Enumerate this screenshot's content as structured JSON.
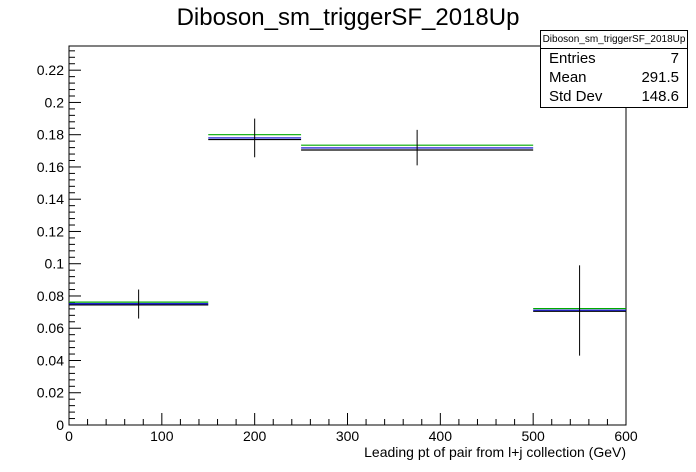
{
  "chart_data": {
    "type": "histogram",
    "title": "Diboson_sm_triggerSF_2018Up",
    "xlabel": "Leading pt of pair from l+j collection (GeV)",
    "ylabel": "",
    "xlim": [
      0,
      600
    ],
    "ylim": [
      0,
      0.235
    ],
    "x_ticks": [
      0,
      100,
      200,
      300,
      400,
      500,
      600
    ],
    "y_ticks": [
      0,
      0.02,
      0.04,
      0.06,
      0.08,
      0.1,
      0.12,
      0.14,
      0.16,
      0.18,
      0.2,
      0.22
    ],
    "bins": [
      {
        "xlow": 0,
        "xhigh": 150,
        "center": 75,
        "value": 0.075,
        "err": 0.009
      },
      {
        "xlow": 150,
        "xhigh": 250,
        "center": 200,
        "value": 0.178,
        "err": 0.012
      },
      {
        "xlow": 250,
        "xhigh": 500,
        "center": 375,
        "value": 0.172,
        "err": 0.011
      },
      {
        "xlow": 500,
        "xhigh": 600,
        "center": 550,
        "value": 0.071,
        "err": 0.028
      }
    ],
    "series": [
      {
        "color": "#000000",
        "values": [
          0.0745,
          0.177,
          0.1705,
          0.0705
        ]
      },
      {
        "color": "#0000cc",
        "values": [
          0.0752,
          0.178,
          0.1718,
          0.0712
        ]
      },
      {
        "color": "#00aa00",
        "values": [
          0.0762,
          0.18,
          0.1735,
          0.0722
        ]
      }
    ],
    "stats_box": {
      "name": "Diboson_sm_triggerSF_2018Up",
      "entries_label": "Entries",
      "entries": "7",
      "mean_label": "Mean",
      "mean": "291.5",
      "std_label": "Std Dev",
      "std": "148.6"
    }
  }
}
